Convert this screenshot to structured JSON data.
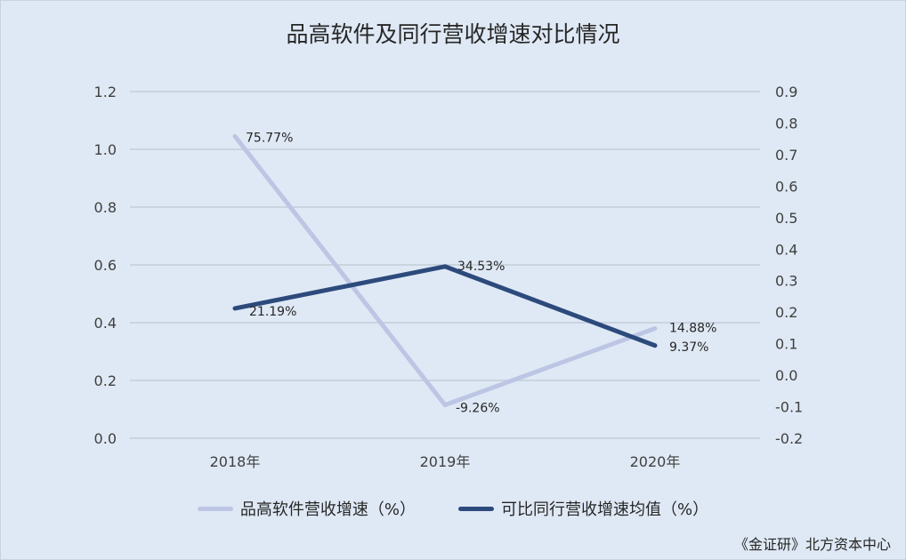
{
  "chart_data": {
    "type": "line",
    "title": "品高软件及同行营收增速对比情况",
    "categories": [
      "2018年",
      "2019年",
      "2020年"
    ],
    "y_left": {
      "ticks": [
        "0.0",
        "0.2",
        "0.4",
        "0.6",
        "0.8",
        "1.0",
        "1.2"
      ],
      "ylim": [
        0,
        1.2
      ]
    },
    "y_right": {
      "ticks": [
        "-0.2",
        "-0.1",
        "0.0",
        "0.1",
        "0.2",
        "0.3",
        "0.4",
        "0.5",
        "0.6",
        "0.7",
        "0.8",
        "0.9"
      ],
      "ylim": [
        -0.2,
        0.9
      ]
    },
    "grid": true,
    "legend_position": "bottom",
    "series": [
      {
        "name": "品高软件营收增速（%）",
        "axis": "left",
        "color": "#bcc6e4",
        "values": [
          1.045,
          0.115,
          0.38
        ],
        "labels": [
          "75.77%",
          "-9.26%",
          "14.88%"
        ]
      },
      {
        "name": "可比同行营收增速均值（%）",
        "axis": "right",
        "color": "#2c4a7c",
        "values": [
          0.212,
          0.345,
          0.094
        ],
        "labels": [
          "21.19%",
          "34.53%",
          "9.37%"
        ]
      }
    ]
  },
  "source": "《金证研》北方资本中心"
}
